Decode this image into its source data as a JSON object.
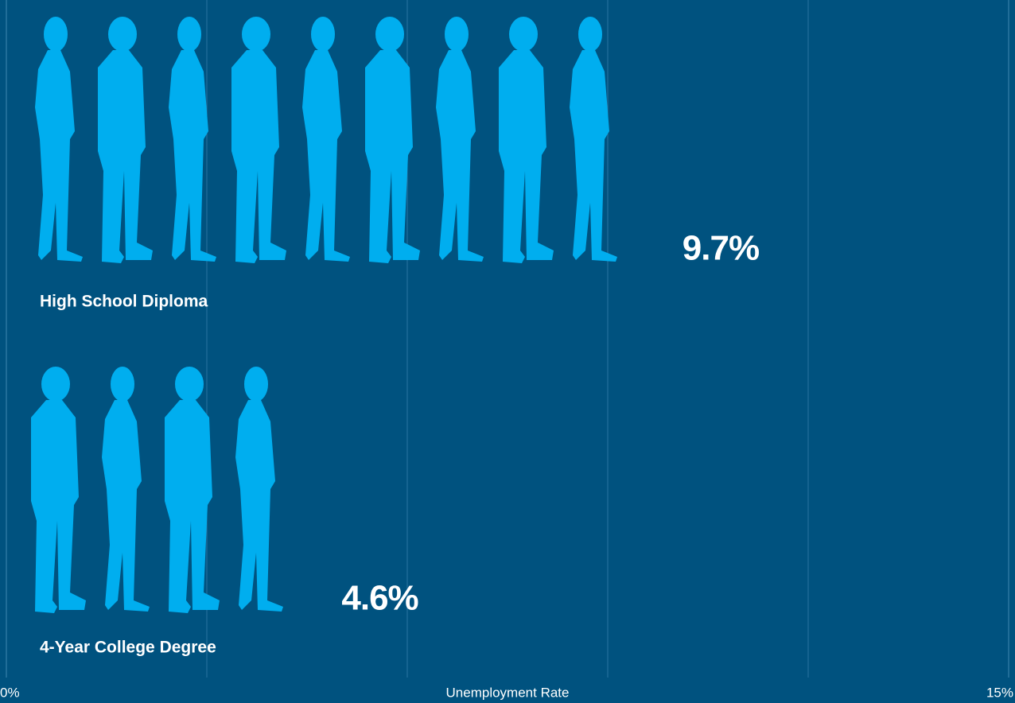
{
  "chart_data": {
    "type": "pictogram",
    "categories": [
      "High School Diploma",
      "4-Year College Degree"
    ],
    "values": [
      9.7,
      4.6
    ],
    "value_labels": [
      "9.7%",
      "4.6%"
    ],
    "color": "#00aeef",
    "background": "#00527f",
    "xlabel": "Unemployment Rate",
    "xlim": [
      0,
      15
    ],
    "xticks": [
      {
        "value": 0,
        "label": "0%"
      },
      {
        "value": 15,
        "label": "15%"
      }
    ],
    "xgrid": [
      3,
      6,
      9,
      12
    ],
    "grid": true
  }
}
